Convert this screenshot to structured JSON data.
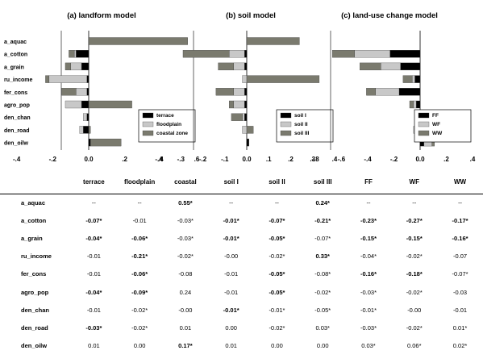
{
  "chart_data": [
    {
      "type": "bar",
      "orientation": "horizontal",
      "stacked": true,
      "title": "(a) landform model",
      "categories": [
        "a_aquac",
        "a_cotton",
        "a_grain",
        "ru_income",
        "fer_cons",
        "agro_pop",
        "den_chan",
        "den_road",
        "den_oilw"
      ],
      "series": [
        {
          "name": "terrace",
          "color": "#000000",
          "values": [
            0,
            -0.07,
            -0.04,
            -0.01,
            -0.01,
            -0.04,
            -0.01,
            -0.03,
            0.01
          ]
        },
        {
          "name": "floodplain",
          "color": "#c8c8c8",
          "values": [
            0,
            -0.01,
            -0.06,
            -0.21,
            -0.06,
            -0.09,
            -0.02,
            -0.02,
            0.0
          ]
        },
        {
          "name": "coastal zone",
          "color": "#7a7a6e",
          "values": [
            0.55,
            -0.03,
            -0.03,
            -0.02,
            -0.08,
            0.24,
            0.0,
            0.01,
            0.17
          ]
        }
      ],
      "xlim": [
        -0.4,
        0.6
      ],
      "ticks": [
        "-.4",
        "-.2",
        "0.0",
        ".2",
        ".4",
        ".6"
      ],
      "tick_values": [
        -0.4,
        -0.2,
        0,
        0.2,
        0.4,
        0.6
      ],
      "legend": "bottom-right",
      "grid": false
    },
    {
      "type": "bar",
      "orientation": "horizontal",
      "stacked": true,
      "title": "(b) soil model",
      "categories": [
        "a_aquac",
        "a_cotton",
        "a_grain",
        "ru_income",
        "fer_cons",
        "agro_pop",
        "den_chan",
        "den_road",
        "den_oilw"
      ],
      "series": [
        {
          "name": "soil I",
          "color": "#000000",
          "values": [
            0,
            -0.01,
            -0.01,
            0.0,
            -0.01,
            -0.01,
            -0.01,
            0.0,
            0.01
          ]
        },
        {
          "name": "soil II",
          "color": "#c8c8c8",
          "values": [
            0,
            -0.07,
            -0.05,
            -0.02,
            -0.05,
            -0.05,
            -0.01,
            -0.02,
            0.0
          ]
        },
        {
          "name": "soil III",
          "color": "#7a7a6e",
          "values": [
            0.24,
            -0.21,
            -0.07,
            0.33,
            -0.08,
            -0.02,
            -0.05,
            0.03,
            0.0
          ]
        }
      ],
      "xlim": [
        -0.4,
        0.4
      ],
      "ticks": [
        "-.4",
        "-.3",
        "-.2",
        "-.1",
        "0.0",
        ".1",
        ".2",
        ".3",
        ".4"
      ],
      "tick_values": [
        -0.4,
        -0.3,
        -0.2,
        -0.1,
        0,
        0.1,
        0.2,
        0.3,
        0.4
      ],
      "legend": "bottom-right",
      "grid": false
    },
    {
      "type": "bar",
      "orientation": "horizontal",
      "stacked": true,
      "title": "(c) land-use change model",
      "categories": [
        "a_aquac",
        "a_cotton",
        "a_grain",
        "ru_income",
        "fer_cons",
        "agro_pop",
        "den_chan",
        "den_road",
        "den_oilw"
      ],
      "series": [
        {
          "name": "FF",
          "color": "#000000",
          "values": [
            0,
            -0.23,
            -0.15,
            -0.04,
            -0.16,
            -0.03,
            -0.01,
            -0.03,
            0.03
          ]
        },
        {
          "name": "WF",
          "color": "#c8c8c8",
          "values": [
            0,
            -0.27,
            -0.15,
            -0.02,
            -0.18,
            -0.02,
            0.0,
            -0.02,
            0.06
          ]
        },
        {
          "name": "WW",
          "color": "#7a7a6e",
          "values": [
            0,
            -0.17,
            -0.16,
            -0.07,
            -0.07,
            -0.03,
            -0.01,
            0.01,
            0.02
          ]
        }
      ],
      "xlim": [
        -0.8,
        0.4
      ],
      "ticks": [
        "-.8",
        "-.6",
        "-.4",
        "-.2",
        "0.0",
        ".2",
        ".4"
      ],
      "tick_values": [
        -0.8,
        -0.6,
        -0.4,
        -0.2,
        0,
        0.2,
        0.4
      ],
      "legend": "bottom-right",
      "grid": false
    },
    {
      "type": "table",
      "columns": [
        "",
        "terrace",
        "floodplain",
        "coastal",
        "soil I",
        "soil II",
        "soil III",
        "FF",
        "WF",
        "WW"
      ],
      "rows": [
        {
          "label": "a_aquac",
          "cells": [
            "--",
            "--",
            "0.55*",
            "--",
            "--",
            "0.24*",
            "--",
            "--",
            "--"
          ],
          "bold": [
            false,
            false,
            true,
            false,
            false,
            true,
            false,
            false,
            false
          ]
        },
        {
          "label": "a_cotton",
          "cells": [
            "-0.07*",
            "-0.01",
            "-0.03*",
            "-0.01*",
            "-0.07*",
            "-0.21*",
            "-0.23*",
            "-0.27*",
            "-0.17*"
          ],
          "bold": [
            true,
            false,
            false,
            true,
            true,
            true,
            true,
            true,
            true
          ]
        },
        {
          "label": "a_grain",
          "cells": [
            "-0.04*",
            "-0.06*",
            "-0.03*",
            "-0.01*",
            "-0.05*",
            "-0.07*",
            "-0.15*",
            "-0.15*",
            "-0.16*"
          ],
          "bold": [
            true,
            true,
            false,
            true,
            true,
            false,
            true,
            true,
            true
          ]
        },
        {
          "label": "ru_income",
          "cells": [
            "-0.01",
            "-0.21*",
            "-0.02*",
            "-0.00",
            "-0.02*",
            "0.33*",
            "-0.04*",
            "-0.02*",
            "-0.07"
          ],
          "bold": [
            false,
            true,
            false,
            false,
            false,
            true,
            false,
            false,
            false
          ]
        },
        {
          "label": "fer_cons",
          "cells": [
            "-0.01",
            "-0.06*",
            "-0.08",
            "-0.01",
            "-0.05*",
            "-0.08*",
            "-0.16*",
            "-0.18*",
            "-0.07*"
          ],
          "bold": [
            false,
            true,
            false,
            false,
            true,
            false,
            true,
            true,
            false
          ]
        },
        {
          "label": "agro_pop",
          "cells": [
            "-0.04*",
            "-0.09*",
            "0.24",
            "-0.01",
            "-0.05*",
            "-0.02*",
            "-0.03*",
            "-0.02*",
            "-0.03"
          ],
          "bold": [
            true,
            true,
            false,
            false,
            true,
            false,
            false,
            false,
            false
          ]
        },
        {
          "label": "den_chan",
          "cells": [
            "-0.01",
            "-0.02*",
            "-0.00",
            "-0.01*",
            "-0.01*",
            "-0.05*",
            "-0.01*",
            "-0.00",
            "-0.01"
          ],
          "bold": [
            false,
            false,
            false,
            true,
            false,
            false,
            false,
            false,
            false
          ]
        },
        {
          "label": "den_road",
          "cells": [
            "-0.03*",
            "-0.02*",
            "0.01",
            "0.00",
            "-0.02*",
            "0.03*",
            "-0.03*",
            "-0.02*",
            "0.01*"
          ],
          "bold": [
            true,
            false,
            false,
            false,
            false,
            false,
            false,
            false,
            false
          ]
        },
        {
          "label": "den_oilw",
          "cells": [
            "0.01",
            "0.00",
            "0.17*",
            "0.01",
            "0.00",
            "0.00",
            "0.03*",
            "0.06*",
            "0.02*"
          ],
          "bold": [
            false,
            false,
            true,
            false,
            false,
            false,
            false,
            false,
            false
          ]
        }
      ]
    }
  ]
}
